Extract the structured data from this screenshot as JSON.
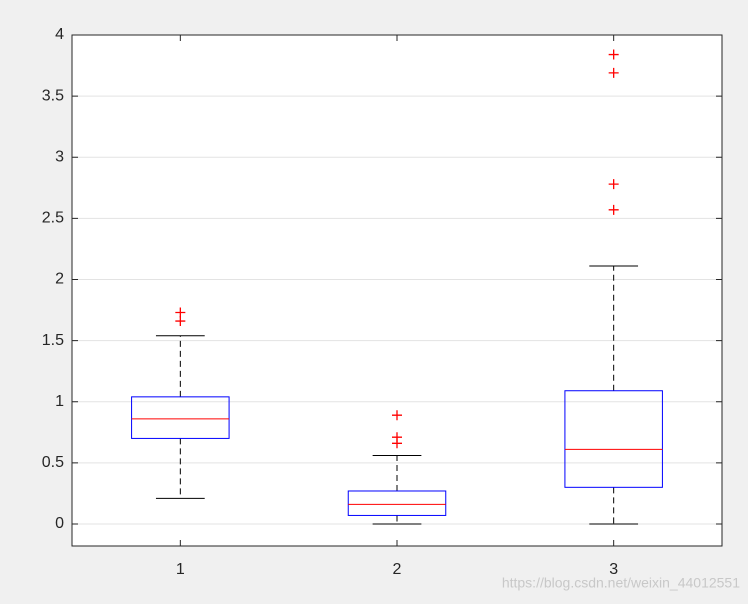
{
  "chart_data": {
    "type": "box",
    "categories": [
      "1",
      "2",
      "3"
    ],
    "boxes": [
      {
        "whisker_low": 0.21,
        "q1": 0.7,
        "median": 0.86,
        "q3": 1.04,
        "whisker_high": 1.54,
        "outliers": [
          1.73,
          1.66
        ]
      },
      {
        "whisker_low": 0.0,
        "q1": 0.07,
        "median": 0.16,
        "q3": 0.27,
        "whisker_high": 0.56,
        "outliers": [
          0.89,
          0.71,
          0.66
        ]
      },
      {
        "whisker_low": 0.0,
        "q1": 0.3,
        "median": 0.61,
        "q3": 1.09,
        "whisker_high": 2.11,
        "outliers": [
          3.84,
          3.69,
          2.78,
          2.57
        ]
      }
    ],
    "box_color": "#0000ff",
    "median_color": "#ff0000",
    "whisker_color": "#000000",
    "outlier_color": "#ff0000",
    "ylim": [
      -0.18,
      4
    ],
    "yticks": [
      0,
      0.5,
      1,
      1.5,
      2,
      2.5,
      3,
      3.5,
      4
    ],
    "grid": true,
    "annotation": "https://blog.csdn.net/weixin_44012551"
  }
}
